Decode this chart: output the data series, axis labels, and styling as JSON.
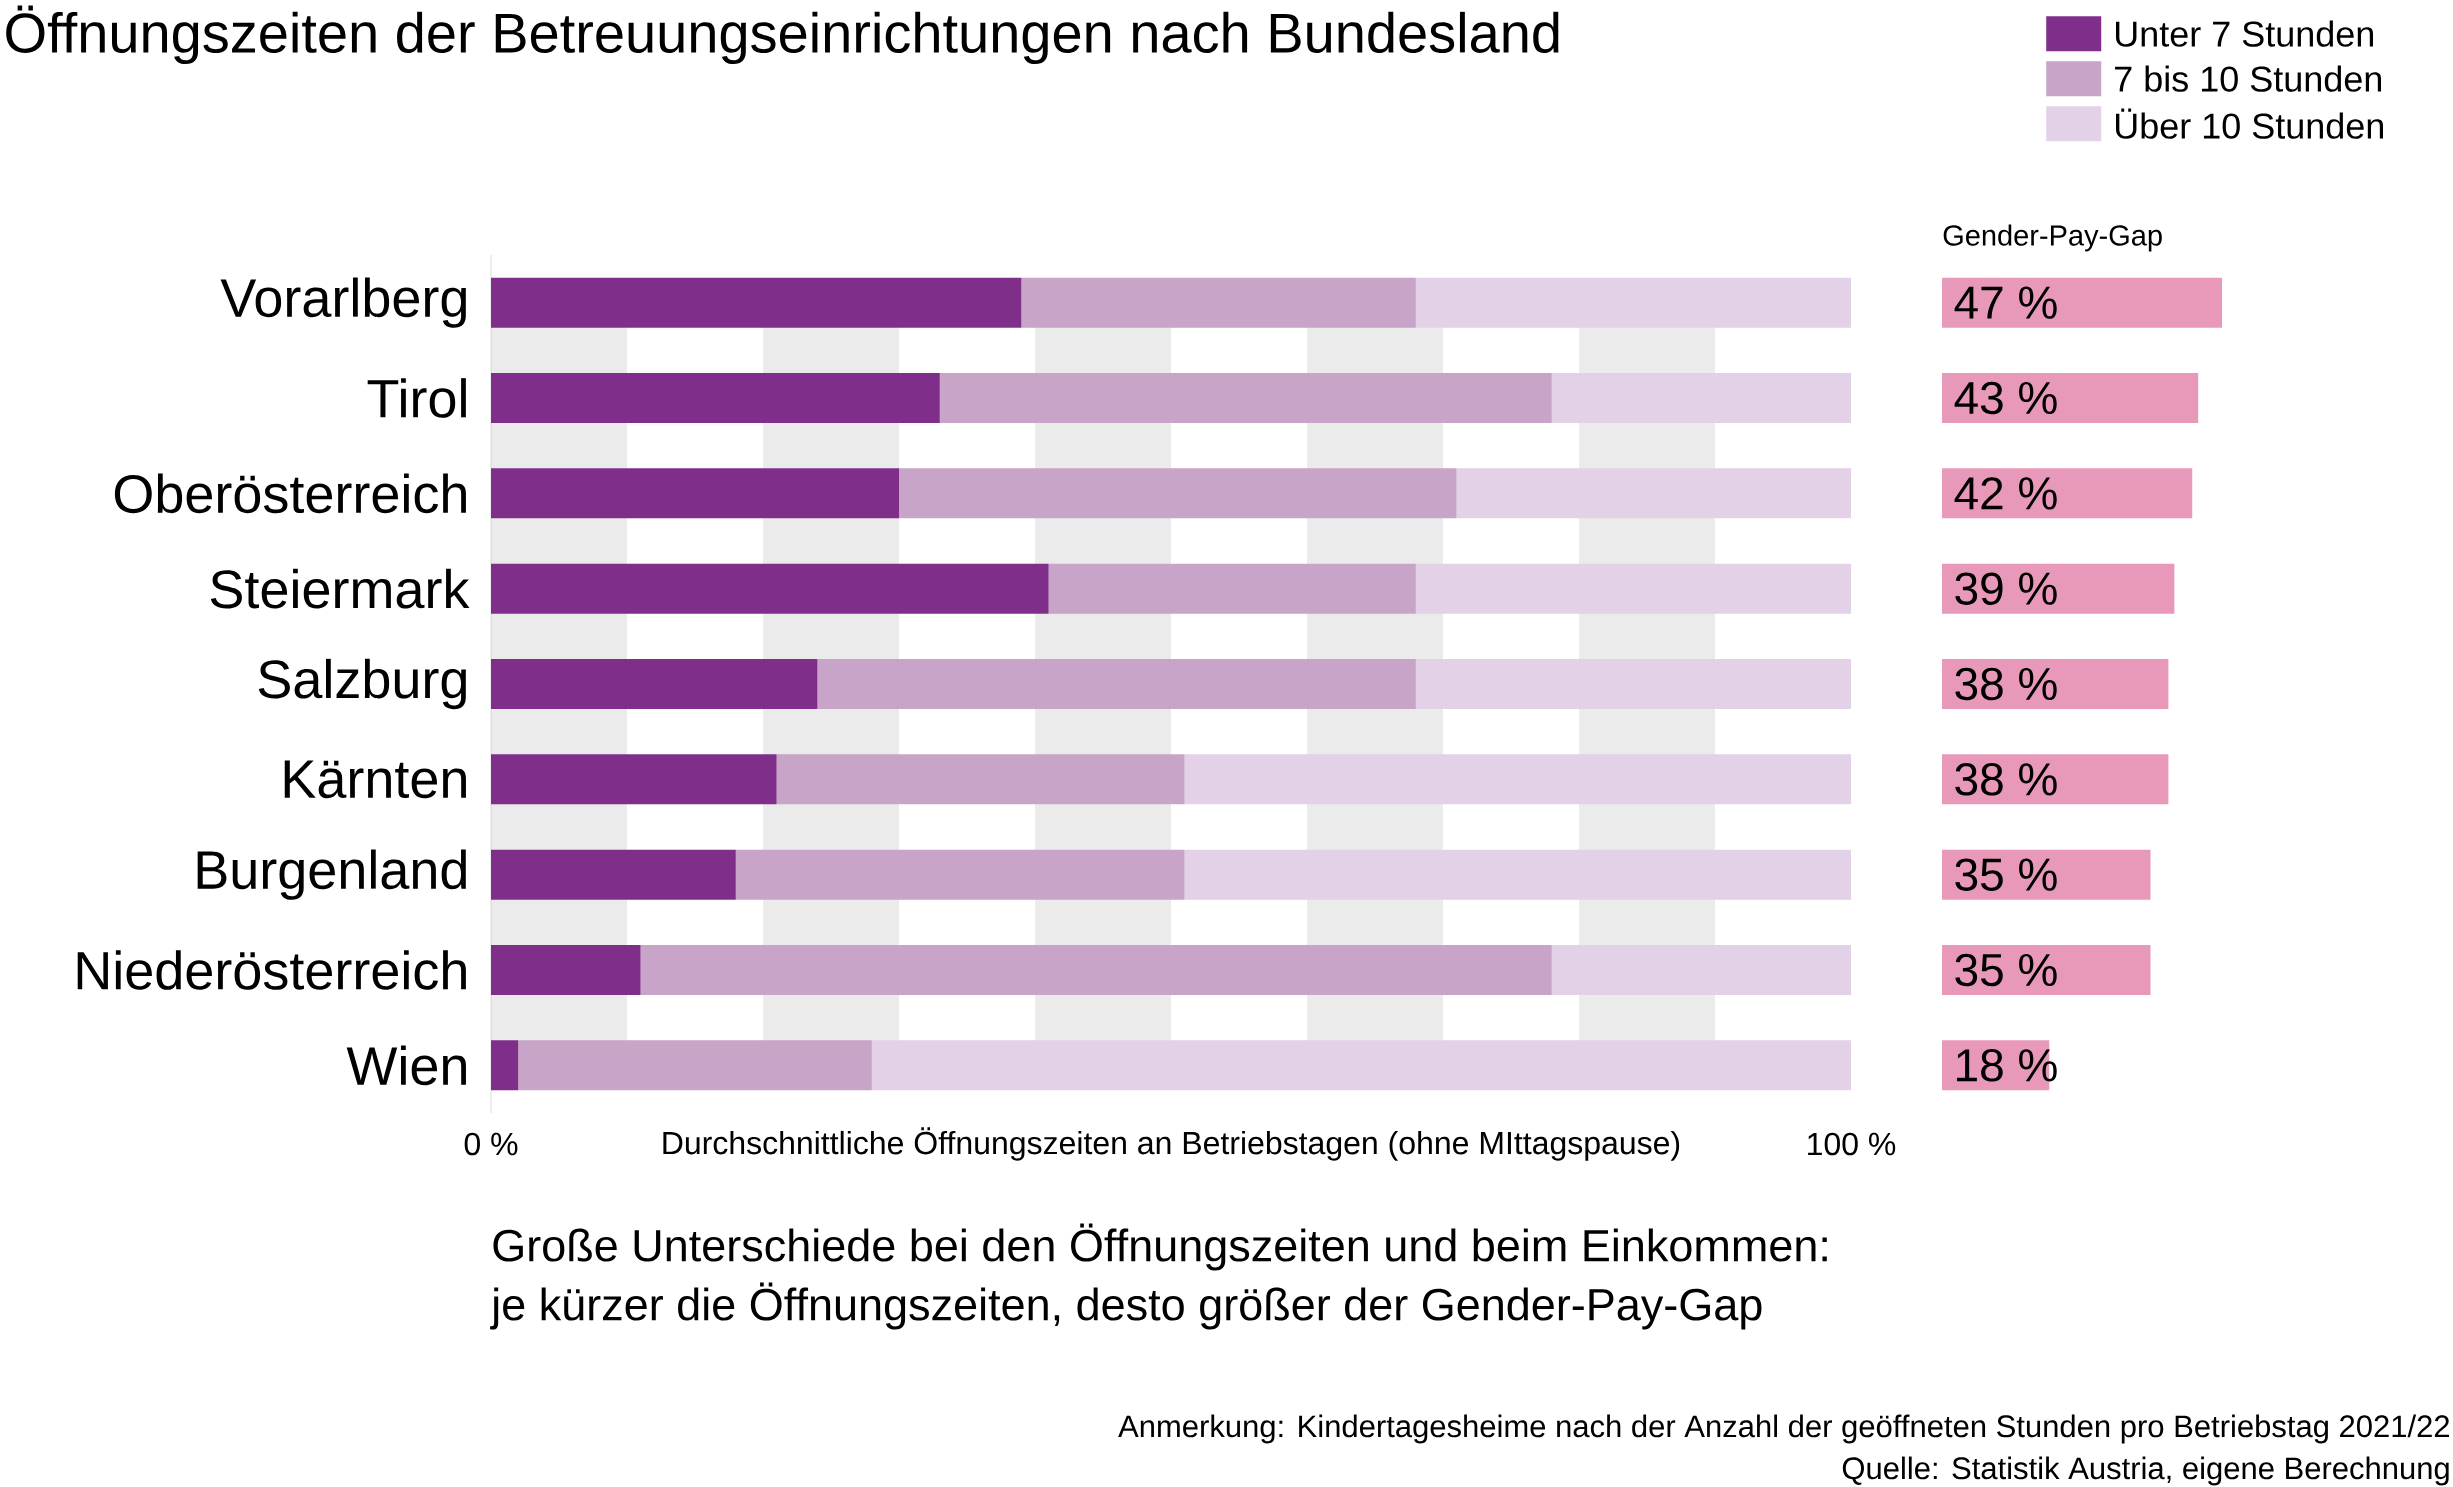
{
  "chart_data": [
    {
      "type": "bar",
      "orientation": "horizontal",
      "stacked": true,
      "title": "Öffnungszeiten der Betreuungseinrichtungen nach Bundesland",
      "xlabel": "Durchschnittliche Öffnungszeiten an Betriebstagen (ohne MIttagspause)",
      "categories": [
        "Vorarlberg",
        "Tirol",
        "Oberösterreich",
        "Steiermark",
        "Salzburg",
        "Kärnten",
        "Burgenland",
        "Niederösterreich",
        "Wien"
      ],
      "series": [
        {
          "name": "Unter 7 Stunden",
          "color": "#7f2f8a",
          "values": [
            39,
            33,
            30,
            41,
            24,
            21,
            18,
            11,
            2
          ]
        },
        {
          "name": "7 bis 10 Stunden",
          "color": "#c8a5c8",
          "values": [
            29,
            45,
            41,
            27,
            44,
            30,
            33,
            67,
            26
          ]
        },
        {
          "name": "Über 10 Stunden",
          "color": "#e3d1e8",
          "values": [
            32,
            22,
            29,
            32,
            32,
            49,
            49,
            22,
            72
          ]
        }
      ],
      "xlim": [
        0,
        100
      ],
      "xticks": [
        {
          "value": 0,
          "label": "0 %"
        },
        {
          "value": 100,
          "label": "100 %"
        }
      ],
      "bands": [
        {
          "axis": "x",
          "from": 0,
          "to": 10,
          "color": "#ebebeb"
        },
        {
          "axis": "x",
          "from": 20,
          "to": 30,
          "color": "#ebebeb"
        },
        {
          "axis": "x",
          "from": 40,
          "to": 50,
          "color": "#ebebeb"
        },
        {
          "axis": "x",
          "from": 60,
          "to": 70,
          "color": "#ebebeb"
        },
        {
          "axis": "x",
          "from": 80,
          "to": 90,
          "color": "#ebebeb"
        }
      ],
      "legend": "top right",
      "annotations": [
        "Große Unterschiede bei den Öffnungszeiten und beim Einkommen:",
        "je kürzer die Öffnungszeiten, desto größer der Gender-Pay-Gap",
        "Anmerkung: Kindertagesheime nach der Anzahl der geöffneten Stunden pro Betriebstag 2021/22",
        "Quelle: Statistik Austria, eigene Berechnung"
      ]
    },
    {
      "type": "bar",
      "orientation": "horizontal",
      "title": "Gender-Pay-Gap",
      "categories": [
        null,
        null,
        null,
        null,
        null,
        null,
        null,
        null,
        null
      ],
      "series": [
        {
          "color": "#e899b9",
          "values": [
            47,
            43,
            42,
            39,
            38,
            38,
            35,
            35,
            18
          ],
          "value_labels": [
            "47 %",
            "43 %",
            "42 %",
            "39 %",
            "38 %",
            "38 %",
            "35 %",
            "35 %",
            "18 %"
          ]
        }
      ],
      "legend": false
    }
  ]
}
